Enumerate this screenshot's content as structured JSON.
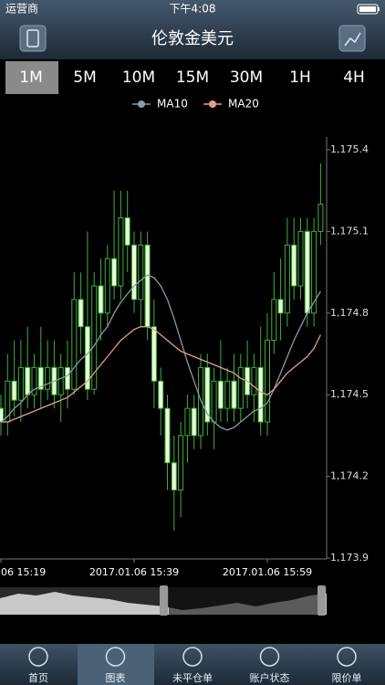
{
  "status_bar": {
    "carrier": "运营商",
    "time": "下午4:08"
  },
  "header": {
    "title": "伦敦金美元"
  },
  "timeframes": [
    "1M",
    "5M",
    "10M",
    "15M",
    "30M",
    "1H",
    "4H"
  ],
  "chart_data": {
    "type": "candlestick",
    "categories": [
      "06 15:19",
      null,
      null,
      null,
      null,
      null,
      null,
      null,
      null,
      null,
      null,
      null,
      null,
      null,
      null,
      null,
      null,
      null,
      null,
      null,
      "2017.01.06 15:39",
      null,
      null,
      null,
      null,
      null,
      null,
      null,
      null,
      null,
      null,
      null,
      null,
      null,
      null,
      null,
      null,
      null,
      null,
      null,
      "2017.01.06 15:59",
      null,
      null,
      null,
      null,
      null,
      null,
      null,
      null
    ],
    "open": [
      1174.45,
      1174.4,
      1174.55,
      1174.48,
      1174.6,
      1174.5,
      1174.6,
      1174.52,
      1174.6,
      1174.5,
      1174.6,
      1174.52,
      1174.85,
      1174.75,
      1174.52,
      1174.9,
      1174.8,
      1175.0,
      1174.9,
      1175.15,
      1175.05,
      1174.85,
      1175.05,
      1174.75,
      1174.55,
      1174.45,
      1174.25,
      1174.15,
      1174.35,
      1174.45,
      1174.35,
      1174.6,
      1174.4,
      1174.55,
      1174.45,
      1174.55,
      1174.45,
      1174.6,
      1174.5,
      1174.6,
      1174.4,
      1174.7,
      1174.85,
      1174.8,
      1175.05,
      1174.9,
      1175.1,
      1174.8,
      1175.1
    ],
    "high": [
      1174.5,
      1174.65,
      1174.7,
      1174.7,
      1174.75,
      1174.65,
      1174.75,
      1174.7,
      1174.7,
      1174.65,
      1174.7,
      1174.95,
      1174.95,
      1175.1,
      1174.95,
      1175.0,
      1175.05,
      1175.25,
      1175.25,
      1175.25,
      1175.1,
      1175.1,
      1175.1,
      1174.85,
      1174.6,
      1174.5,
      1174.35,
      1174.4,
      1174.5,
      1174.5,
      1174.65,
      1174.65,
      1174.6,
      1174.7,
      1174.6,
      1174.65,
      1174.65,
      1174.7,
      1174.65,
      1174.75,
      1174.8,
      1174.95,
      1175.0,
      1175.15,
      1175.15,
      1175.15,
      1175.15,
      1175.15,
      1175.35
    ],
    "low": [
      1174.35,
      1174.35,
      1174.42,
      1174.4,
      1174.45,
      1174.45,
      1174.45,
      1174.48,
      1174.45,
      1174.4,
      1174.45,
      1174.5,
      1174.65,
      1174.48,
      1174.5,
      1174.7,
      1174.75,
      1174.85,
      1174.85,
      1174.95,
      1174.8,
      1174.75,
      1174.7,
      1174.45,
      1174.35,
      1174.15,
      1174.0,
      1174.05,
      1174.25,
      1174.3,
      1174.3,
      1174.35,
      1174.3,
      1174.4,
      1174.4,
      1174.4,
      1174.4,
      1174.45,
      1174.4,
      1174.35,
      1174.35,
      1174.65,
      1174.7,
      1174.75,
      1174.85,
      1174.85,
      1174.75,
      1174.75,
      1175.05
    ],
    "close": [
      1174.4,
      1174.55,
      1174.48,
      1174.6,
      1174.5,
      1174.6,
      1174.52,
      1174.6,
      1174.5,
      1174.6,
      1174.52,
      1174.85,
      1174.75,
      1174.52,
      1174.9,
      1174.8,
      1175.0,
      1174.9,
      1175.15,
      1175.05,
      1174.85,
      1175.05,
      1174.75,
      1174.55,
      1174.45,
      1174.25,
      1174.15,
      1174.35,
      1174.45,
      1174.35,
      1174.6,
      1174.4,
      1174.55,
      1174.45,
      1174.55,
      1174.45,
      1174.6,
      1174.5,
      1174.6,
      1174.4,
      1174.7,
      1174.85,
      1174.8,
      1175.05,
      1174.9,
      1175.1,
      1174.8,
      1175.1,
      1175.2
    ],
    "candle_color": "#3fae3f",
    "series": [
      {
        "name": "MA10",
        "color": "#8a9aa6",
        "values": [
          1174.4,
          1174.42,
          1174.45,
          1174.47,
          1174.5,
          1174.52,
          1174.53,
          1174.54,
          1174.55,
          1174.56,
          1174.57,
          1174.6,
          1174.63,
          1174.65,
          1174.68,
          1174.72,
          1174.75,
          1174.8,
          1174.84,
          1174.87,
          1174.9,
          1174.92,
          1174.94,
          1174.93,
          1174.9,
          1174.85,
          1174.78,
          1174.7,
          1174.62,
          1174.55,
          1174.48,
          1174.43,
          1174.4,
          1174.38,
          1174.37,
          1174.38,
          1174.4,
          1174.42,
          1174.44,
          1174.45,
          1174.47,
          1174.52,
          1174.58,
          1174.64,
          1174.7,
          1174.75,
          1174.8,
          1174.84,
          1174.88
        ]
      },
      {
        "name": "MA20",
        "color": "#e2a08c",
        "values": [
          1174.4,
          1174.4,
          1174.41,
          1174.42,
          1174.43,
          1174.44,
          1174.45,
          1174.46,
          1174.47,
          1174.48,
          1174.49,
          1174.51,
          1174.53,
          1174.55,
          1174.58,
          1174.61,
          1174.64,
          1174.67,
          1174.7,
          1174.72,
          1174.74,
          1174.75,
          1174.75,
          1174.74,
          1174.72,
          1174.7,
          1174.68,
          1174.66,
          1174.65,
          1174.64,
          1174.63,
          1174.62,
          1174.61,
          1174.6,
          1174.59,
          1174.58,
          1174.56,
          1174.55,
          1174.53,
          1174.51,
          1174.5,
          1174.52,
          1174.55,
          1174.58,
          1174.6,
          1174.62,
          1174.64,
          1174.67,
          1174.72
        ]
      }
    ],
    "ylim": [
      1173.9,
      1175.4
    ],
    "yticks": [
      {
        "value": 1173.9,
        "label": "1,173.9"
      },
      {
        "value": 1174.2,
        "label": "1,174.2"
      },
      {
        "value": 1174.5,
        "label": "1,174.5"
      },
      {
        "value": 1174.8,
        "label": "1,174.8"
      },
      {
        "value": 1175.1,
        "label": "1,175.1"
      },
      {
        "value": 1175.4,
        "label": "1,175.4"
      }
    ]
  },
  "tab_bar": [
    "首页",
    "图表",
    "未平仓单",
    "账户状态",
    "限价单"
  ]
}
